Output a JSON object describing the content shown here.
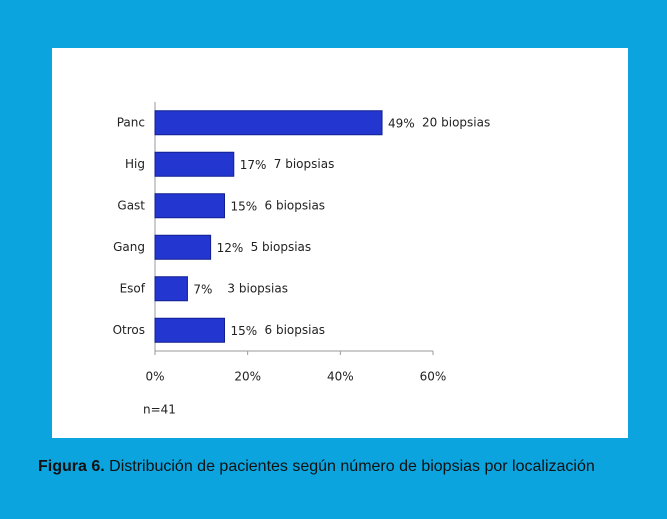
{
  "chart_data": {
    "type": "bar",
    "orientation": "horizontal",
    "categories": [
      "Panc",
      "Hig",
      "Gast",
      "Gang",
      "Esof",
      "Otros"
    ],
    "values": [
      49,
      17,
      15,
      12,
      7,
      15
    ],
    "value_labels": [
      "49%",
      "17%",
      "15%",
      "12%",
      "7%",
      "15%"
    ],
    "annotations": [
      "20 biopsias",
      "7 biopsias",
      "6 biopsias",
      "5 biopsias",
      "3 biopsias",
      "6 biopsias"
    ],
    "color": "#2436d0",
    "xlim": [
      0,
      60
    ],
    "xticks": [
      {
        "value": 0,
        "label": "0%"
      },
      {
        "value": 20,
        "label": "20%"
      },
      {
        "value": 40,
        "label": "40%"
      },
      {
        "value": 60,
        "label": "60%"
      }
    ],
    "note": "n=41"
  },
  "caption": {
    "label": "Figura 6.",
    "text": "Distribución de pacientes según número de biopsias por localización"
  }
}
